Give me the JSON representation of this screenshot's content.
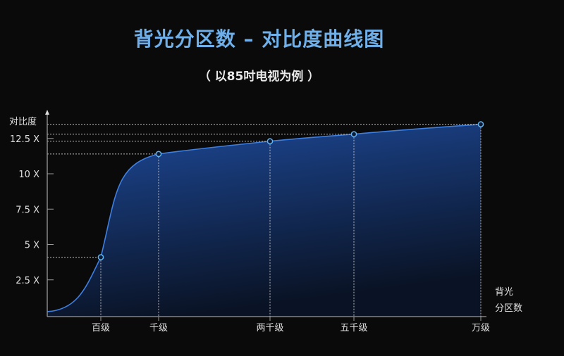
{
  "title": "背光分区数 – 对比度曲线图",
  "subtitle": "（ 以85吋电视为例 ）",
  "chart_data": {
    "type": "area",
    "title": "背光分区数 – 对比度曲线图",
    "subtitle": "（ 以85吋电视为例 ）",
    "ylabel": "对比度",
    "xlabel_lines": [
      "背光",
      "分区数"
    ],
    "categories": [
      "百级",
      "千级",
      "两千级",
      "五千级",
      "万级"
    ],
    "yticks": [
      2.5,
      5,
      7.5,
      10,
      12.5
    ],
    "ytick_labels": [
      "2.5 X",
      "5 X",
      "7.5 X",
      "10 X",
      "12.5 X"
    ],
    "ylim": [
      0,
      14
    ],
    "start_value": 0.25,
    "values": [
      4.1,
      11.4,
      12.3,
      12.8,
      13.5
    ],
    "grid": false,
    "colors": {
      "line": "#3f7fe0",
      "fill_top": "#1d4a9a",
      "marker": "#5fb4f5",
      "title": "#6fb0ea"
    }
  }
}
